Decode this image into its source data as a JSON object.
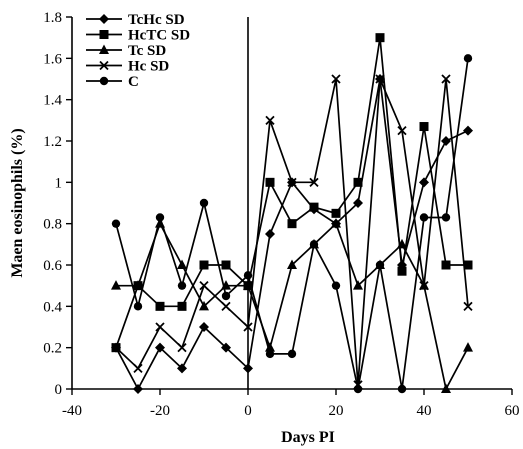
{
  "chart_data": {
    "type": "line",
    "xlabel": "Days PI",
    "ylabel": "Maen eosinophils (%)",
    "xlim": [
      -40,
      60
    ],
    "ylim": [
      0,
      1.8
    ],
    "xticks": [
      -40,
      -20,
      0,
      20,
      40,
      60
    ],
    "yticks": [
      0,
      0.2,
      0.4,
      0.6,
      0.8,
      1,
      1.2,
      1.4,
      1.6,
      1.8
    ],
    "xtick_labels": [
      "-40",
      "-20",
      "0",
      "20",
      "40",
      "60"
    ],
    "ytick_labels": [
      "0",
      "0.2",
      "0.4",
      "0.6",
      "0.8",
      "1",
      "1.2",
      "1.4",
      "1.6",
      "1.8"
    ],
    "grid": false,
    "legend_position": "top-left",
    "line_color": "#000000",
    "series": [
      {
        "name": "TcHc SD",
        "marker": "diamond",
        "x": [
          -30,
          -25,
          -20,
          -15,
          -10,
          -5,
          0,
          5,
          10,
          15,
          20,
          25,
          30,
          35,
          40,
          45,
          50
        ],
        "y": [
          0.2,
          0.0,
          0.2,
          0.1,
          0.3,
          0.2,
          0.1,
          0.75,
          1.0,
          0.87,
          0.8,
          0.9,
          1.5,
          0.6,
          1.0,
          1.2,
          1.25
        ]
      },
      {
        "name": "HcTC SD",
        "marker": "square",
        "x": [
          -30,
          -25,
          -20,
          -15,
          -10,
          -5,
          0,
          5,
          10,
          15,
          20,
          25,
          30,
          35,
          40,
          45,
          50
        ],
        "y": [
          0.2,
          0.5,
          0.4,
          0.4,
          0.6,
          0.6,
          0.5,
          1.0,
          0.8,
          0.88,
          0.85,
          1.0,
          1.7,
          0.57,
          1.27,
          0.6,
          0.6
        ]
      },
      {
        "name": "Tc SD",
        "marker": "triangle",
        "x": [
          -30,
          -25,
          -20,
          -15,
          -10,
          -5,
          0,
          5,
          10,
          15,
          20,
          25,
          30,
          35,
          40,
          45,
          50
        ],
        "y": [
          0.5,
          0.5,
          0.8,
          0.6,
          0.4,
          0.5,
          0.5,
          0.2,
          0.6,
          0.7,
          0.8,
          0.5,
          0.6,
          0.7,
          0.5,
          0.0,
          0.2
        ]
      },
      {
        "name": "Hc SD",
        "marker": "x",
        "x": [
          -30,
          -25,
          -20,
          -15,
          -10,
          -5,
          0,
          5,
          10,
          15,
          20,
          25,
          30,
          35,
          40,
          45,
          50
        ],
        "y": [
          0.2,
          0.1,
          0.3,
          0.2,
          0.5,
          0.4,
          0.3,
          1.3,
          1.0,
          1.0,
          1.5,
          0.02,
          1.5,
          1.25,
          0.5,
          1.5,
          0.4
        ]
      },
      {
        "name": "C",
        "marker": "circle",
        "x": [
          -30,
          -25,
          -20,
          -15,
          -10,
          -5,
          0,
          5,
          10,
          15,
          20,
          25,
          30,
          35,
          40,
          45,
          50
        ],
        "y": [
          0.8,
          0.4,
          0.83,
          0.5,
          0.9,
          0.45,
          0.55,
          0.17,
          0.17,
          0.7,
          0.5,
          0.0,
          0.6,
          0.0,
          0.83,
          0.83,
          1.6
        ]
      }
    ]
  }
}
